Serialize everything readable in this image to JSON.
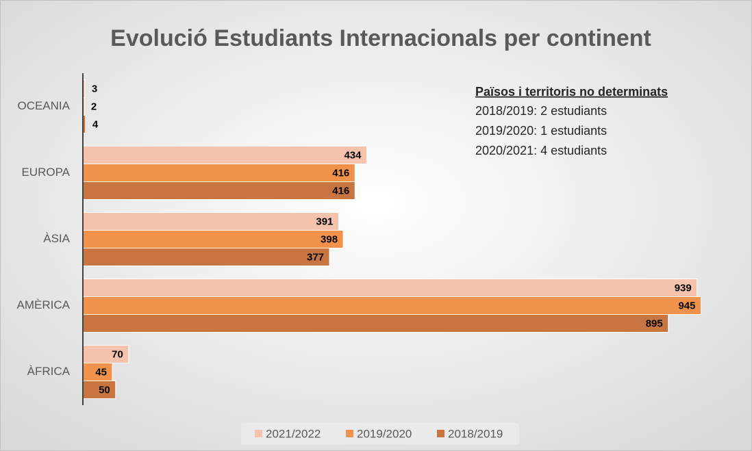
{
  "chart_data": {
    "type": "barh",
    "title": "Evolució Estudiants Internacionals per continent",
    "categories": [
      "OCEANIA",
      "EUROPA",
      "ÀSIA",
      "AMÈRICA",
      "ÀFRICA"
    ],
    "series": [
      {
        "name": "2021/2022",
        "color": "#f5c3ad",
        "values": [
          3,
          434,
          391,
          939,
          70
        ]
      },
      {
        "name": "2019/2020",
        "color": "#f0924c",
        "values": [
          2,
          416,
          398,
          945,
          45
        ]
      },
      {
        "name": "2018/2019",
        "color": "#c97541",
        "values": [
          4,
          416,
          377,
          895,
          50
        ]
      }
    ],
    "xlim": [
      0,
      1000
    ],
    "legend": "bottom",
    "annotation": {
      "title": "Països i territoris  no determinats",
      "lines": [
        "2018/2019: 2 estudiants",
        "2019/2020: 1 estudiants",
        "2020/2021: 4 estudiants"
      ]
    }
  }
}
